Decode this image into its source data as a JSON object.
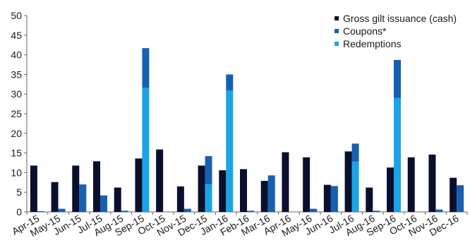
{
  "chart_data": {
    "type": "bar",
    "categories": [
      "Apr-15",
      "May-15",
      "Jun-15",
      "Jul-15",
      "Aug-15",
      "Sep-15",
      "Oct-15",
      "Nov-15",
      "Dec-15",
      "Jan-16",
      "Feb-16",
      "Mar-16",
      "Apr-16",
      "May-16",
      "Jun-16",
      "Jul-16",
      "Aug-16",
      "Sep-16",
      "Oct-16",
      "Nov-16",
      "Dec-16"
    ],
    "ylim": [
      0,
      50
    ],
    "yticks": [
      0,
      5,
      10,
      15,
      20,
      25,
      30,
      35,
      40,
      45,
      50
    ],
    "grid": false,
    "legend_position": "top-right",
    "series": [
      {
        "name": "Gross gilt issuance (cash)",
        "color": "#0a0f2e",
        "values": [
          11.8,
          7.6,
          11.8,
          12.9,
          6.2,
          13.6,
          15.9,
          6.5,
          11.8,
          10.6,
          10.9,
          7.9,
          15.2,
          13.9,
          6.9,
          15.4,
          6.2,
          11.3,
          13.9,
          14.6,
          8.7
        ]
      },
      {
        "name": "Coupons*",
        "color": "#1660b0",
        "values": [
          0.2,
          0.8,
          7.0,
          4.2,
          0.3,
          10.1,
          0,
          0.8,
          7.1,
          4.1,
          0.3,
          9.3,
          0,
          0.8,
          6.6,
          4.6,
          0.3,
          9.7,
          0,
          0.6,
          6.8
        ]
      },
      {
        "name": "Redemptions",
        "color": "#1aa3e6",
        "values": [
          0,
          0,
          0,
          0,
          0,
          31.6,
          0,
          0,
          7.1,
          30.9,
          0,
          0,
          0,
          0,
          0,
          12.8,
          0,
          29.0,
          0,
          0,
          0
        ]
      }
    ]
  }
}
